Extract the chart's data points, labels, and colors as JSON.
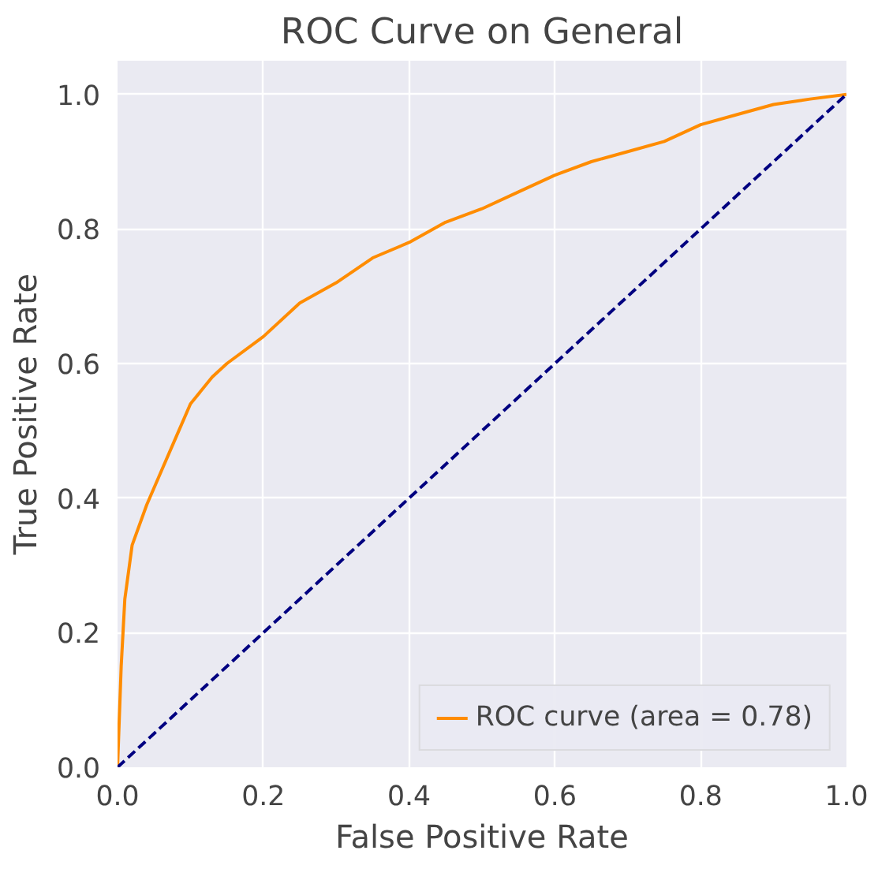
{
  "chart_data": {
    "type": "line",
    "title": "ROC Curve on General",
    "xlabel": "False Positive Rate",
    "ylabel": "True Positive Rate",
    "xlim": [
      0,
      1
    ],
    "ylim": [
      0,
      1.05
    ],
    "xticks": [
      {
        "value": 0,
        "label": "0.0"
      },
      0.2,
      0.4,
      0.6,
      0.8,
      {
        "value": 1,
        "label": "1.0"
      }
    ],
    "yticks": [
      {
        "value": 0,
        "label": "0.0"
      },
      0.2,
      0.4,
      0.6,
      0.8,
      {
        "value": 1,
        "label": "1.0"
      }
    ],
    "grid": true,
    "legend": "bottom right",
    "series": [
      {
        "name": "ROC curve (area = 0.78)",
        "color": "#ff8c00",
        "line_style": "solid",
        "x": [
          0,
          0.005,
          0.01,
          0.02,
          0.04,
          0.06,
          0.08,
          0.1,
          0.13,
          0.15,
          0.2,
          0.25,
          0.3,
          0.35,
          0.4,
          0.45,
          0.5,
          0.55,
          0.6,
          0.65,
          0.7,
          0.75,
          0.8,
          0.85,
          0.9,
          0.95,
          1.0
        ],
        "values": [
          0,
          0.15,
          0.25,
          0.33,
          0.39,
          0.44,
          0.49,
          0.54,
          0.58,
          0.6,
          0.64,
          0.69,
          0.72,
          0.757,
          0.78,
          0.81,
          0.83,
          0.855,
          0.88,
          0.9,
          0.915,
          0.93,
          0.955,
          0.97,
          0.985,
          0.993,
          1.0
        ]
      },
      {
        "color": "#000080",
        "line_style": "dashed",
        "x": [
          0,
          1
        ],
        "values": [
          0,
          1
        ]
      }
    ]
  }
}
